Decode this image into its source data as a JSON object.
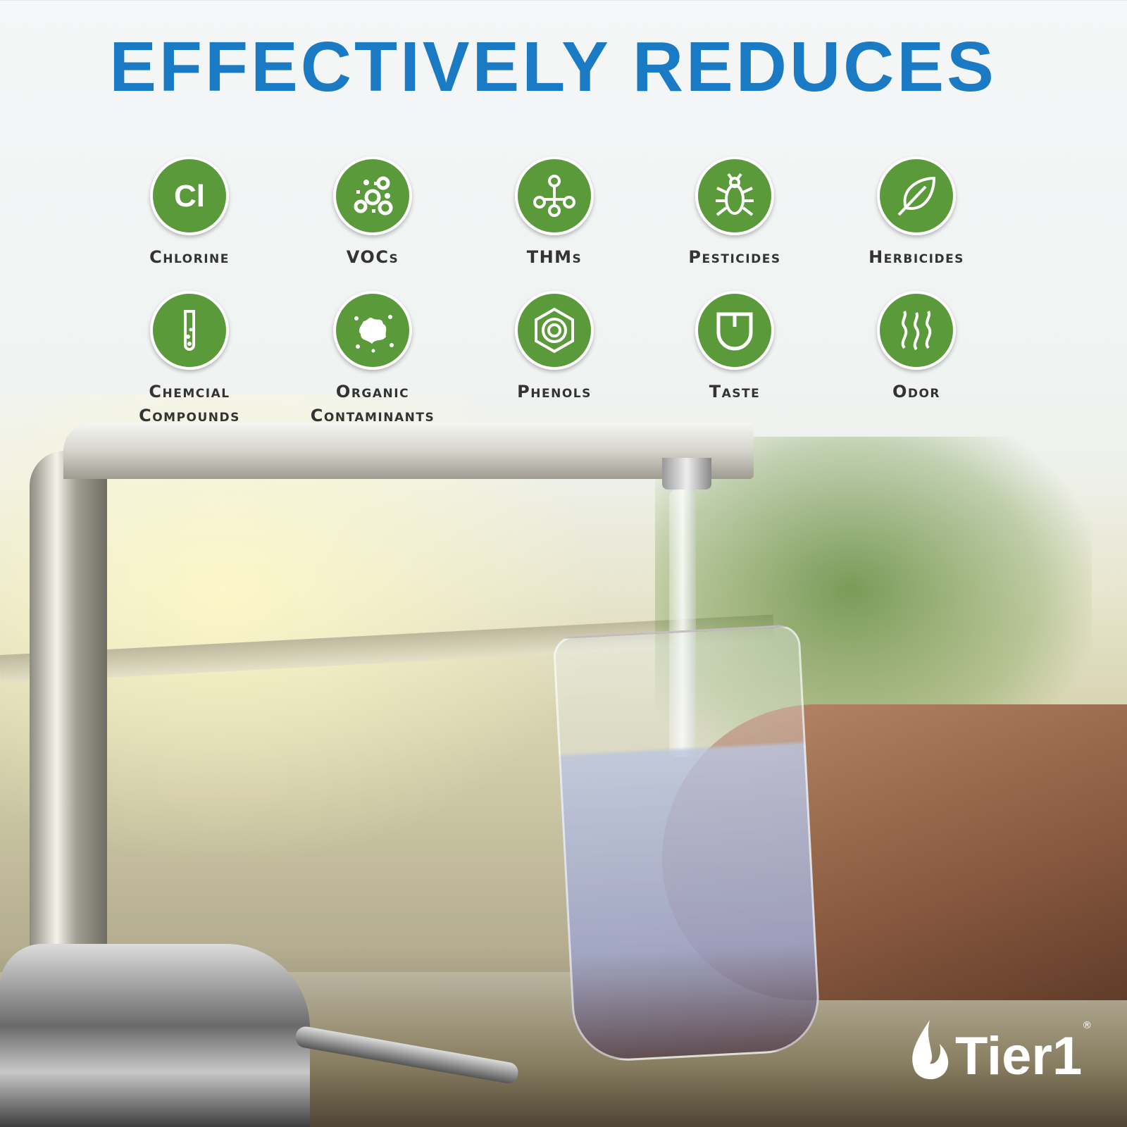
{
  "title": "EFFECTIVELY REDUCES",
  "colors": {
    "title": "#1a7bc4",
    "icon_bg": "#5a9a3a",
    "label": "#333333"
  },
  "items": [
    {
      "label": [
        "Chlorine"
      ],
      "icon": "chlorine-cl-icon",
      "glyph": "Cl"
    },
    {
      "label": [
        "VOCs"
      ],
      "icon": "bubbles-icon"
    },
    {
      "label": [
        "THMs"
      ],
      "icon": "molecule-icon"
    },
    {
      "label": [
        "Pesticides"
      ],
      "icon": "bug-icon"
    },
    {
      "label": [
        "Herbicides"
      ],
      "icon": "leaf-icon"
    },
    {
      "label": [
        "Chemcial",
        "Compounds"
      ],
      "icon": "test-tube-icon"
    },
    {
      "label": [
        "Organic",
        "Contaminants"
      ],
      "icon": "splatter-icon"
    },
    {
      "label": [
        "Phenols"
      ],
      "icon": "hexagon-ring-icon"
    },
    {
      "label": [
        "Taste"
      ],
      "icon": "tongue-icon"
    },
    {
      "label": [
        "Odor"
      ],
      "icon": "odor-waves-icon"
    }
  ],
  "brand": {
    "name": "Tier1",
    "registered": "®"
  }
}
